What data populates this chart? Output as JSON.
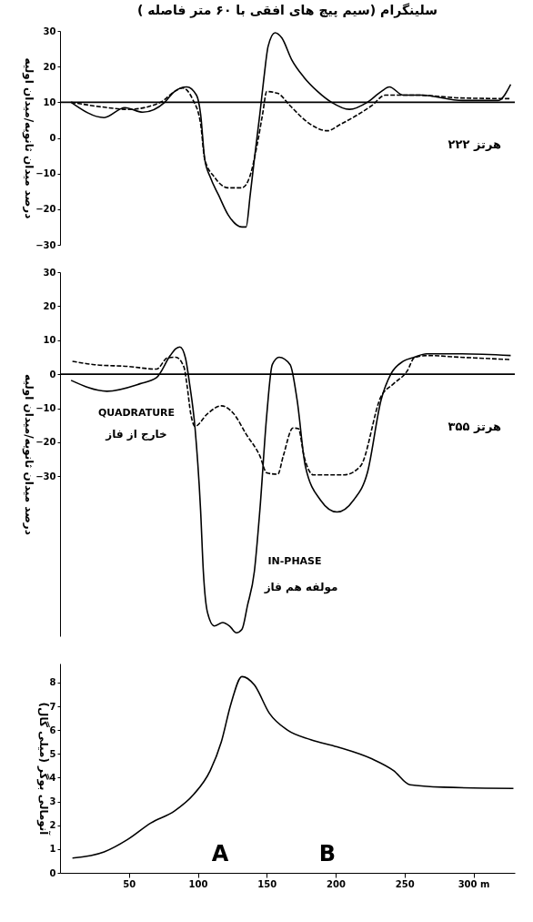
{
  "chart_data": [
    {
      "type": "line",
      "title": "سلینگرام (سیم پیچ های افقی با ۶۰ متر فاصله )",
      "ylabel": "درصد میدان ثانویه/میدان اولیه",
      "xlim": [
        0,
        330
      ],
      "ylim": [
        -30,
        30
      ],
      "yticks": [
        -30,
        -20,
        -10,
        0,
        10,
        20,
        30
      ],
      "tick_labels": "y",
      "grid": false,
      "series": [
        {
          "color": "#000000",
          "line_style": "solid",
          "x": [
            8,
            32,
            47,
            60,
            76,
            83,
            92,
            99,
            102,
            105,
            109,
            115,
            122,
            132,
            135,
            138,
            141,
            145,
            148,
            151,
            156,
            161,
            168,
            177,
            187,
            197,
            210,
            223,
            233,
            239,
            249,
            262,
            292,
            318,
            327
          ],
          "values": [
            10,
            5.7,
            8.5,
            7.2,
            10,
            13,
            14.3,
            12,
            6.7,
            -6,
            -11,
            -16,
            -21.6,
            -25,
            -25,
            -16,
            -6,
            6.7,
            17,
            25.7,
            29.5,
            28,
            22,
            17,
            13,
            10,
            8,
            10,
            13,
            14.3,
            12,
            12,
            10.5,
            10.5,
            15
          ]
        },
        {
          "color": "#000000",
          "line_style": "dashed",
          "x": [
            8,
            30,
            50,
            73,
            83,
            89,
            96,
            102,
            105,
            112,
            122,
            132,
            138,
            143,
            147,
            150,
            158,
            167,
            181,
            194,
            203,
            216,
            226,
            236,
            259,
            291,
            327
          ],
          "values": [
            10,
            8.7,
            8,
            10,
            13,
            14,
            11,
            4,
            -6,
            -11,
            -14,
            -14,
            -10.5,
            -2,
            6.7,
            13,
            12.5,
            9,
            4,
            2,
            3.7,
            6.5,
            9,
            12,
            12,
            11.2,
            11
          ]
        }
      ],
      "ref_lines": [
        {
          "axis": "y",
          "value": 10
        }
      ],
      "annotations": [
        "۲۲۲ هرتز"
      ]
    },
    {
      "type": "line",
      "ylabel": "درصد میدان ثانویه/میدان اولیه",
      "xlim": [
        0,
        330
      ],
      "ylim": [
        -77,
        30
      ],
      "yticks": [
        -30,
        -20,
        -10,
        0,
        10,
        20,
        30
      ],
      "tick_labels": "y",
      "grid": false,
      "series": [
        {
          "color": "#000000",
          "line_style": "solid",
          "x": [
            8,
            34,
            58,
            70,
            80,
            84,
            87,
            91,
            94,
            98,
            102,
            104,
            107,
            112,
            118,
            123,
            128,
            132,
            136,
            141,
            145,
            150,
            154,
            159,
            167,
            172,
            178,
            189,
            201,
            213,
            223,
            233,
            240,
            249,
            257,
            266,
            290,
            327
          ],
          "values": [
            -1.8,
            -5,
            -2.8,
            -1,
            5.5,
            7.5,
            8,
            4.8,
            -2.8,
            -16,
            -40,
            -58,
            -70,
            -74,
            -73,
            -74,
            -76,
            -75,
            -68,
            -58,
            -40,
            -12,
            2.8,
            5,
            2.8,
            -7.5,
            -27,
            -37,
            -40.5,
            -37,
            -29,
            -7.5,
            0,
            3.8,
            5,
            6,
            6,
            5.5
          ]
        },
        {
          "color": "#000000",
          "line_style": "dashed",
          "x": [
            9,
            25,
            49,
            70,
            78,
            84,
            90,
            92,
            95,
            98,
            107,
            117,
            126,
            135,
            145,
            150,
            158,
            162,
            169,
            173,
            177,
            184,
            206,
            218,
            233,
            242,
            252,
            257,
            266,
            290,
            327
          ],
          "values": [
            3.8,
            2.8,
            2.3,
            1.5,
            4.8,
            5,
            2,
            -2.8,
            -12,
            -15.3,
            -11.6,
            -9.3,
            -11.6,
            -17.6,
            -24,
            -29,
            -29.4,
            -24,
            -15.8,
            -16,
            -24,
            -29.6,
            -29.6,
            -27,
            -6.5,
            -2.8,
            1,
            4.8,
            5.5,
            5,
            4.3
          ]
        }
      ],
      "ref_lines": [
        {
          "axis": "y",
          "value": 0
        }
      ],
      "annotations": [
        "۳۵۵ هرتز",
        "QUADRATURE",
        "خارج از فاز",
        "IN-PHASE",
        "مولفه هم فاز"
      ]
    },
    {
      "type": "line",
      "ylabel": "آنومالی بوگر (میلی گال)",
      "xlim": [
        0,
        330
      ],
      "ylim": [
        0,
        8.8
      ],
      "yticks": [
        0,
        1,
        2,
        3,
        4,
        5,
        6,
        7,
        8
      ],
      "xticks": [
        50,
        100,
        150,
        200,
        250,
        {
          "value": 300,
          "label": "300 m"
        }
      ],
      "grid": false,
      "series": [
        {
          "color": "#000000",
          "line_style": "solid",
          "x": [
            9,
            32,
            49,
            66,
            83,
            97,
            109,
            117,
            124,
            132,
            141,
            152,
            165,
            182,
            201,
            226,
            242,
            254,
            278,
            329
          ],
          "values": [
            0.62,
            0.88,
            1.4,
            2.1,
            2.6,
            3.3,
            4.3,
            5.5,
            7.1,
            8.25,
            7.9,
            6.7,
            6.0,
            5.6,
            5.3,
            4.8,
            4.3,
            3.7,
            3.6,
            3.55
          ]
        }
      ],
      "annotations": [
        "A",
        "B"
      ]
    }
  ]
}
